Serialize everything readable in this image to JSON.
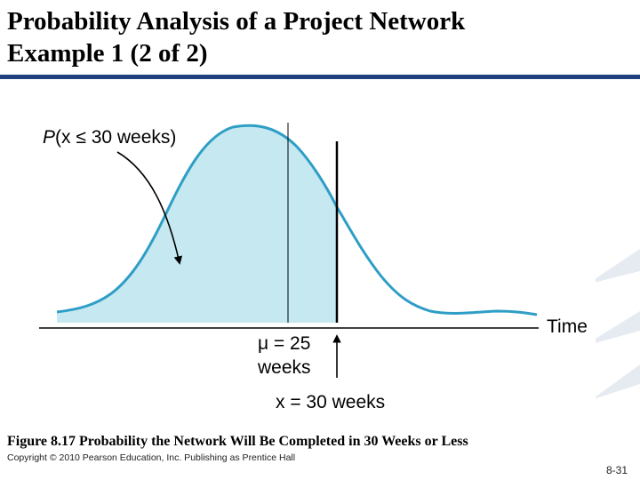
{
  "slide": {
    "title_line1": "Probability Analysis of a Project Network",
    "title_line2": "Example 1 (2 of 2)",
    "caption": "Figure 8.17   Probability the Network Will Be Completed in 30 Weeks or Less",
    "copyright": "Copyright © 2010 Pearson Education, Inc. Publishing as Prentice Hall",
    "page_number": "8-31"
  },
  "figure": {
    "prob_label_p": "P",
    "prob_label_rest": "(x ≤ 30 weeks)",
    "axis_label": "Time",
    "mean_label_line1": "μ = 25",
    "mean_label_line2": "weeks",
    "x_value_label": "x = 30 weeks",
    "colors": {
      "curve": "#2f9ec6",
      "shade": "#c5e8f1",
      "ink": "#000000"
    }
  }
}
